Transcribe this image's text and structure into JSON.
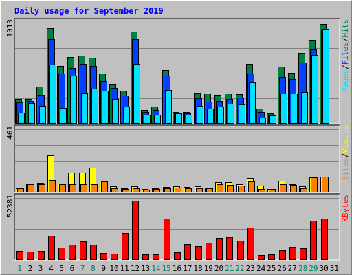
{
  "chart_data": {
    "type": "bar",
    "title": "Daily usage for September 2019",
    "categories": [
      "1",
      "2",
      "3",
      "4",
      "5",
      "6",
      "7",
      "8",
      "9",
      "10",
      "11",
      "12",
      "13",
      "14",
      "15",
      "16",
      "17",
      "18",
      "19",
      "20",
      "21",
      "22",
      "23",
      "24",
      "25",
      "26",
      "27",
      "28",
      "29",
      "30",
      "31"
    ],
    "weekend_days": [
      "1",
      "7",
      "8",
      "14",
      "15",
      "21",
      "22",
      "28",
      "29"
    ],
    "panels": [
      {
        "id": "hits-files-pages",
        "ymax": 1013,
        "ylabel_parts": [
          "Pages",
          "Files",
          "Hits"
        ],
        "series": [
          {
            "name": "Hits",
            "color": "#008040",
            "values": [
              250,
              250,
              370,
              960,
              580,
              670,
              680,
              660,
              500,
              400,
              330,
              920,
              140,
              170,
              540,
              120,
              120,
              310,
              300,
              290,
              300,
              295,
              600,
              150,
              100,
              570,
              510,
              710,
              840,
              1000,
              0
            ]
          },
          {
            "name": "Files",
            "color": "#0040ff",
            "values": [
              215,
              225,
              290,
              850,
              500,
              560,
              600,
              580,
              430,
              360,
              280,
              850,
              115,
              140,
              480,
              100,
              100,
              255,
              220,
              230,
              245,
              260,
              500,
              115,
              80,
              470,
              450,
              610,
              750,
              940,
              0
            ]
          },
          {
            "name": "Pages",
            "color": "#00e0ff",
            "values": [
              110,
              210,
              180,
              590,
              160,
              480,
              310,
              350,
              330,
              250,
              170,
              600,
              90,
              90,
              340,
              100,
              90,
              180,
              155,
              175,
              200,
              190,
              420,
              60,
              80,
              300,
              300,
              320,
              690,
              950,
              0
            ]
          }
        ]
      },
      {
        "id": "visits-sites",
        "ymax": 461,
        "ylabel_parts": [
          "Sites",
          "Visits"
        ],
        "series": [
          {
            "name": "Visits",
            "color": "#ffff00",
            "values": [
              30,
              65,
              70,
              270,
              65,
              145,
              145,
              180,
              85,
              45,
              30,
              45,
              25,
              30,
              40,
              45,
              40,
              45,
              35,
              75,
              75,
              60,
              105,
              50,
              25,
              85,
              60,
              45,
              110,
              115,
              0
            ]
          },
          {
            "name": "Sites",
            "color": "#ff8000",
            "values": [
              28,
              60,
              60,
              90,
              62,
              60,
              60,
              60,
              80,
              30,
              25,
              28,
              22,
              25,
              30,
              35,
              28,
              30,
              30,
              60,
              55,
              50,
              80,
              25,
              25,
              60,
              55,
              30,
              110,
              115,
              0
            ]
          }
        ]
      },
      {
        "id": "kbytes",
        "ymax": 52381,
        "ylabel_parts": [
          "KBytes"
        ],
        "series": [
          {
            "name": "KBytes",
            "color": "#ff0000",
            "values": [
              7400,
              6700,
              7500,
              20500,
              10500,
              12800,
              16000,
              12600,
              5900,
              5100,
              22900,
              50200,
              4500,
              4700,
              35000,
              6200,
              13200,
              11800,
              14600,
              18900,
              19000,
              16200,
              27600,
              3800,
              4900,
              8200,
              11200,
              10000,
              33200,
              35000,
              0
            ]
          }
        ]
      }
    ]
  }
}
